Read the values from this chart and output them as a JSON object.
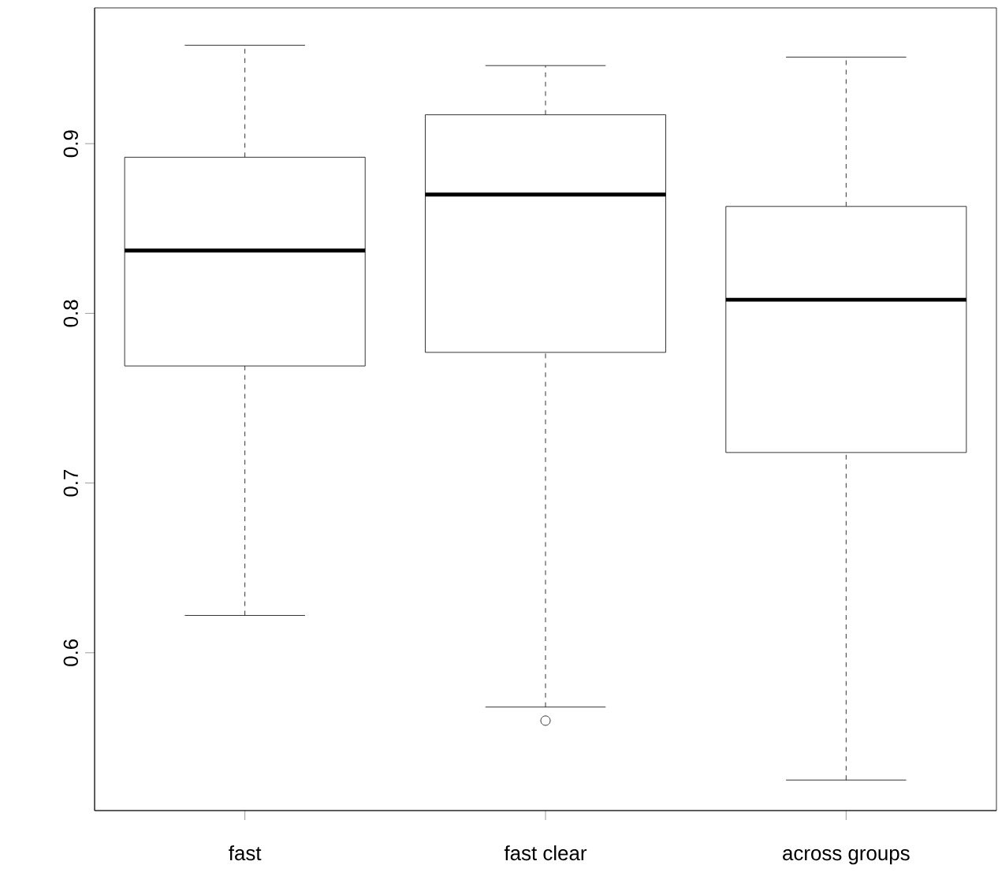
{
  "chart_data": {
    "type": "box",
    "categories": [
      "fast",
      "fast clear",
      "across groups"
    ],
    "boxes": [
      {
        "low": 0.622,
        "q1": 0.769,
        "median": 0.837,
        "q3": 0.892,
        "high": 0.958
      },
      {
        "low": 0.568,
        "q1": 0.777,
        "median": 0.87,
        "q3": 0.917,
        "high": 0.946,
        "outliers": [
          0.56
        ]
      },
      {
        "low": 0.525,
        "q1": 0.718,
        "median": 0.808,
        "q3": 0.863,
        "high": 0.951
      }
    ],
    "ylim": [
      0.507,
      0.98
    ],
    "yticks": [
      0.6,
      0.7,
      0.8,
      0.9
    ]
  }
}
